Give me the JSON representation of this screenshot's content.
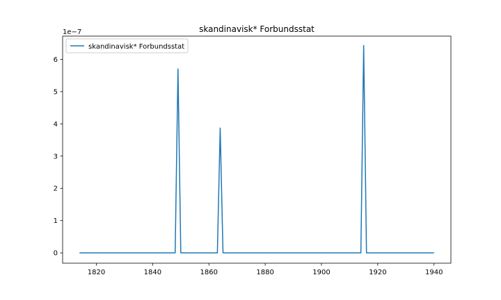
{
  "chart_data": {
    "type": "line",
    "title": "skandinavisk* Forbundsstat",
    "xlabel": "",
    "ylabel": "",
    "y_offset_label": "1e−7",
    "xlim": [
      1808,
      1946
    ],
    "ylim": [
      -0.32,
      6.72
    ],
    "y_scale_note": "values in units of 1e-7",
    "grid": false,
    "legend_position": "top-left",
    "x_ticks": [
      1820,
      1840,
      1860,
      1880,
      1900,
      1920,
      1940
    ],
    "x_tick_labels": [
      "1820",
      "1840",
      "1860",
      "1880",
      "1900",
      "1920",
      "1940"
    ],
    "y_ticks": [
      0,
      1,
      2,
      3,
      4,
      5,
      6
    ],
    "y_tick_labels": [
      "0",
      "1",
      "2",
      "3",
      "4",
      "5",
      "6"
    ],
    "series": [
      {
        "name": "skandinavisk* Forbundsstat",
        "color": "#1f77b4",
        "points": [
          [
            1814,
            0
          ],
          [
            1848,
            0
          ],
          [
            1849,
            5.7
          ],
          [
            1850,
            0
          ],
          [
            1863,
            0
          ],
          [
            1864,
            3.87
          ],
          [
            1865,
            0
          ],
          [
            1914,
            0
          ],
          [
            1915,
            6.43
          ],
          [
            1916,
            0
          ],
          [
            1940,
            0
          ]
        ]
      }
    ]
  }
}
